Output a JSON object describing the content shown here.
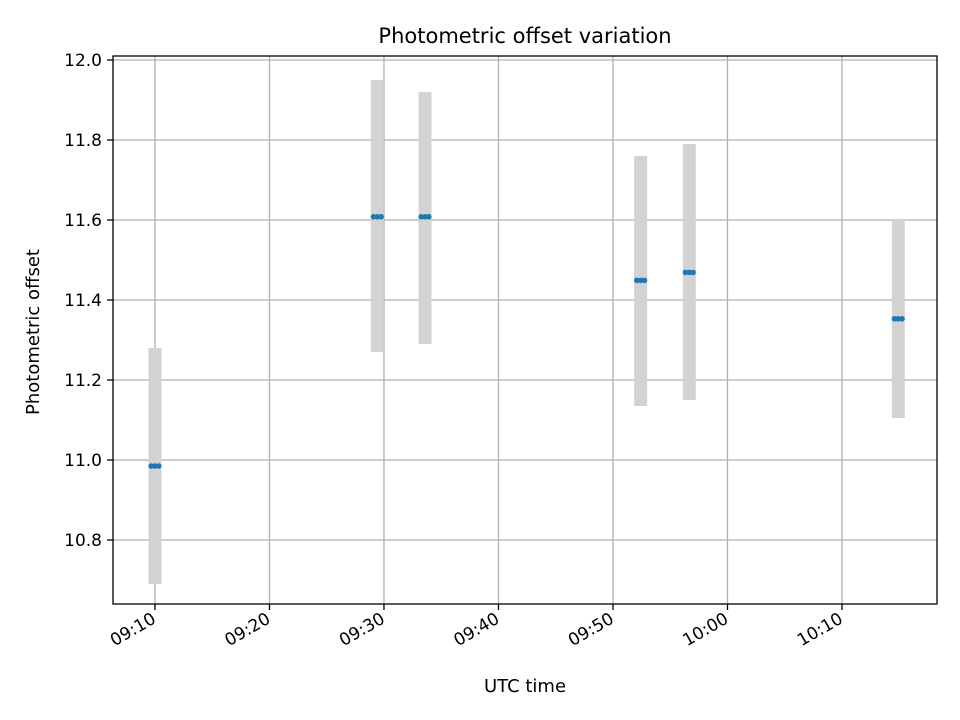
{
  "chart_data": {
    "type": "scatter",
    "title": "Photometric offset variation",
    "xlabel": "UTC time",
    "ylabel": "Photometric offset",
    "x_axis_type": "time",
    "xlim": [
      "09:06:20",
      "10:18:18"
    ],
    "ylim": [
      10.64,
      12.01
    ],
    "x_ticks": [
      "09:10",
      "09:20",
      "09:30",
      "09:40",
      "09:50",
      "10:00",
      "10:10"
    ],
    "y_ticks": [
      10.8,
      11.0,
      11.2,
      11.4,
      11.6,
      11.8,
      12.0
    ],
    "y_tick_labels": [
      "10.8",
      "11.0",
      "11.2",
      "11.4",
      "11.6",
      "11.8",
      "12.0"
    ],
    "grid": true,
    "colors": {
      "points": "#1f77b4",
      "error_band": "#d3d3d3",
      "grid": "#b0b0b0",
      "axes": "#000000"
    },
    "series": [
      {
        "groups": [
          {
            "time": "09:10:00",
            "value": 10.985,
            "low": 10.69,
            "high": 11.28,
            "point_times": [
              "09:09:40",
              "09:10:00",
              "09:10:20"
            ]
          },
          {
            "time": "09:29:25",
            "value": 11.608,
            "low": 11.27,
            "high": 11.95,
            "point_times": [
              "09:29:05",
              "09:29:25",
              "09:29:45"
            ]
          },
          {
            "time": "09:33:35",
            "value": 11.608,
            "low": 11.29,
            "high": 11.92,
            "point_times": [
              "09:33:15",
              "09:33:35",
              "09:33:55"
            ]
          },
          {
            "time": "09:52:25",
            "value": 11.449,
            "low": 11.135,
            "high": 11.76,
            "point_times": [
              "09:52:05",
              "09:52:25",
              "09:52:45"
            ]
          },
          {
            "time": "09:56:40",
            "value": 11.469,
            "low": 11.15,
            "high": 11.79,
            "point_times": [
              "09:56:20",
              "09:56:40",
              "09:57:00"
            ]
          },
          {
            "time": "10:14:55",
            "value": 11.353,
            "low": 11.105,
            "high": 11.6,
            "point_times": [
              "10:14:35",
              "10:14:55",
              "10:15:15"
            ]
          }
        ]
      }
    ]
  }
}
